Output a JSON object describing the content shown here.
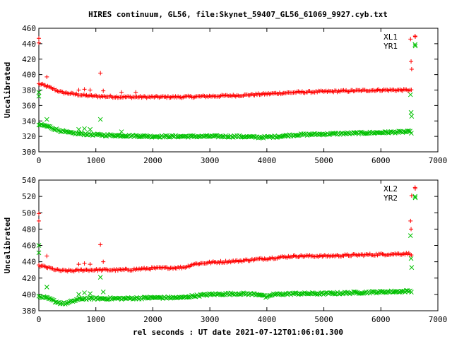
{
  "page": {
    "title": "HIRES continuum, GL56, file:Skynet_59407_GL56_61069_9927.cyb.txt",
    "xlabel": "rel seconds : UT date 2021-07-12T01:06:01.300"
  },
  "colors": {
    "series_a": "#ff0000",
    "series_b": "#00c000",
    "axes": "#000000"
  },
  "chart_data": [
    {
      "type": "scatter",
      "ylabel": "Uncalibrated",
      "xlim": [
        0,
        7000
      ],
      "ylim": [
        300,
        460
      ],
      "xticks": [
        0,
        1000,
        2000,
        3000,
        4000,
        5000,
        6000,
        7000
      ],
      "yticks": [
        300,
        320,
        340,
        360,
        380,
        400,
        420,
        440,
        460
      ],
      "grid": false,
      "legend_position": "top-right",
      "series": [
        {
          "name": "XL1",
          "marker": "plus",
          "color": "#ff0000",
          "trend": [
            [
              0,
              388
            ],
            [
              100,
              386
            ],
            [
              200,
              383
            ],
            [
              300,
              380
            ],
            [
              400,
              377
            ],
            [
              500,
              376
            ],
            [
              600,
              375
            ],
            [
              800,
              373
            ],
            [
              1000,
              372
            ],
            [
              1500,
              371
            ],
            [
              2000,
              371
            ],
            [
              2500,
              371
            ],
            [
              3000,
              372
            ],
            [
              3500,
              373
            ],
            [
              4000,
              375
            ],
            [
              4500,
              377
            ],
            [
              5000,
              378
            ],
            [
              5500,
              379
            ],
            [
              6000,
              380
            ],
            [
              6500,
              380
            ],
            [
              6550,
              379
            ]
          ],
          "outliers": [
            [
              0,
              447
            ],
            [
              0,
              441
            ],
            [
              140,
              397
            ],
            [
              700,
              380
            ],
            [
              800,
              381
            ],
            [
              900,
              380
            ],
            [
              1080,
              402
            ],
            [
              1130,
              379
            ],
            [
              1450,
              377
            ],
            [
              1700,
              377
            ],
            [
              6520,
              446
            ],
            [
              6530,
              417
            ],
            [
              6540,
              407
            ],
            [
              6600,
              450
            ]
          ]
        },
        {
          "name": "YR1",
          "marker": "x",
          "color": "#00c000",
          "trend": [
            [
              0,
              335
            ],
            [
              100,
              334
            ],
            [
              200,
              332
            ],
            [
              300,
              329
            ],
            [
              400,
              327
            ],
            [
              500,
              325
            ],
            [
              600,
              324
            ],
            [
              800,
              323
            ],
            [
              1000,
              322
            ],
            [
              1500,
              321
            ],
            [
              2000,
              320
            ],
            [
              2500,
              320
            ],
            [
              3000,
              320
            ],
            [
              3500,
              320
            ],
            [
              3800,
              319
            ],
            [
              4000,
              319
            ],
            [
              4200,
              320
            ],
            [
              4500,
              322
            ],
            [
              5000,
              323
            ],
            [
              5500,
              324
            ],
            [
              6000,
              325
            ],
            [
              6500,
              326
            ],
            [
              6550,
              325
            ]
          ],
          "outliers": [
            [
              0,
              377
            ],
            [
              0,
              372
            ],
            [
              140,
              342
            ],
            [
              700,
              329
            ],
            [
              800,
              330
            ],
            [
              900,
              329
            ],
            [
              1080,
              342
            ],
            [
              1450,
              326
            ],
            [
              6520,
              374
            ],
            [
              6530,
              351
            ],
            [
              6540,
              346
            ],
            [
              6600,
              439
            ]
          ]
        }
      ]
    },
    {
      "type": "scatter",
      "ylabel": "Uncalibrated",
      "xlim": [
        0,
        7000
      ],
      "ylim": [
        380,
        540
      ],
      "xticks": [
        0,
        1000,
        2000,
        3000,
        4000,
        5000,
        6000,
        7000
      ],
      "yticks": [
        380,
        400,
        420,
        440,
        460,
        480,
        500,
        520,
        540
      ],
      "grid": false,
      "legend_position": "top-right",
      "series": [
        {
          "name": "XL2",
          "marker": "plus",
          "color": "#ff0000",
          "trend": [
            [
              0,
              435
            ],
            [
              100,
              434
            ],
            [
              200,
              432
            ],
            [
              300,
              430
            ],
            [
              400,
              429
            ],
            [
              600,
              429
            ],
            [
              800,
              430
            ],
            [
              1000,
              430
            ],
            [
              1500,
              430
            ],
            [
              2000,
              432
            ],
            [
              2500,
              433
            ],
            [
              2600,
              434
            ],
            [
              2700,
              437
            ],
            [
              3000,
              439
            ],
            [
              3500,
              441
            ],
            [
              4000,
              444
            ],
            [
              4500,
              447
            ],
            [
              5000,
              447
            ],
            [
              5500,
              448
            ],
            [
              6000,
              449
            ],
            [
              6500,
              450
            ],
            [
              6550,
              449
            ]
          ],
          "outliers": [
            [
              0,
              499
            ],
            [
              0,
              490
            ],
            [
              140,
              447
            ],
            [
              700,
              437
            ],
            [
              800,
              438
            ],
            [
              900,
              437
            ],
            [
              1080,
              461
            ],
            [
              1130,
              440
            ],
            [
              6520,
              490
            ],
            [
              6530,
              480
            ],
            [
              6540,
              521
            ],
            [
              6600,
              531
            ]
          ]
        },
        {
          "name": "YR2",
          "marker": "x",
          "color": "#00c000",
          "trend": [
            [
              0,
              397
            ],
            [
              100,
              396
            ],
            [
              200,
              394
            ],
            [
              300,
              391
            ],
            [
              400,
              389
            ],
            [
              500,
              389
            ],
            [
              600,
              392
            ],
            [
              700,
              394
            ],
            [
              800,
              395
            ],
            [
              1000,
              395
            ],
            [
              1500,
              395
            ],
            [
              2000,
              396
            ],
            [
              2500,
              396
            ],
            [
              2700,
              398
            ],
            [
              3000,
              400
            ],
            [
              3500,
              401
            ],
            [
              3900,
              400
            ],
            [
              4000,
              396
            ],
            [
              4100,
              400
            ],
            [
              4500,
              401
            ],
            [
              5000,
              401
            ],
            [
              5500,
              402
            ],
            [
              6000,
              403
            ],
            [
              6500,
              404
            ],
            [
              6550,
              404
            ]
          ],
          "outliers": [
            [
              0,
              460
            ],
            [
              0,
              451
            ],
            [
              140,
              409
            ],
            [
              700,
              400
            ],
            [
              800,
              402
            ],
            [
              900,
              401
            ],
            [
              1080,
              421
            ],
            [
              1130,
              403
            ],
            [
              6520,
              472
            ],
            [
              6530,
              444
            ],
            [
              6540,
              433
            ],
            [
              6600,
              520
            ]
          ]
        }
      ]
    }
  ]
}
